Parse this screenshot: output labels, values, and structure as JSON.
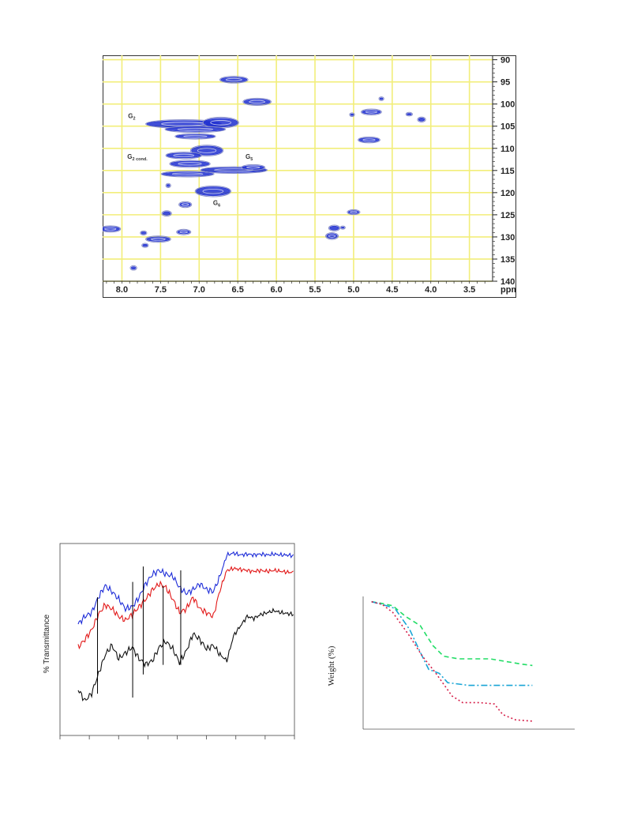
{
  "colors": {
    "grid": "#f2ee7a",
    "contour": "#1f2fd0",
    "contour_edge": "#8a90c8",
    "ftir_blue": "#1d2cd8",
    "ftir_red": "#e21818",
    "ftir_black": "#111111",
    "tga_green": "#22dd66",
    "tga_cyan": "#19a5d6",
    "tga_red": "#d6204a"
  },
  "chart_data": [
    {
      "type": "heatmap",
      "xlabel": "ppm",
      "x_ticks": [
        "8.0",
        "7.5",
        "7.0",
        "6.5",
        "6.0",
        "5.5",
        "5.0",
        "4.5",
        "4.0",
        "3.5"
      ],
      "y_ticks": [
        "90",
        "95",
        "100",
        "105",
        "110",
        "115",
        "120",
        "125",
        "130",
        "135",
        "140"
      ],
      "xlim": [
        8.25,
        3.2
      ],
      "ylim": [
        89,
        140
      ],
      "x_reversed": true,
      "y_axis_position": "right",
      "grid": true,
      "annotations": [
        {
          "label": "G",
          "sub": "2",
          "x": 7.92,
          "y": 103.2
        },
        {
          "label": "G",
          "sub": "2 cond.",
          "x": 7.93,
          "y": 112.4
        },
        {
          "label": "G",
          "sub": "5",
          "x": 6.4,
          "y": 112.4
        },
        {
          "label": "G",
          "sub": "6",
          "x": 6.82,
          "y": 122.8
        }
      ],
      "peaks": [
        {
          "x": 6.55,
          "y": 94.5,
          "rx": 0.17,
          "ry": 0.55
        },
        {
          "x": 6.25,
          "y": 99.5,
          "rx": 0.17,
          "ry": 0.6
        },
        {
          "x": 7.2,
          "y": 104.5,
          "rx": 0.48,
          "ry": 0.75
        },
        {
          "x": 6.72,
          "y": 104.2,
          "rx": 0.22,
          "ry": 1.0
        },
        {
          "x": 7.05,
          "y": 105.7,
          "rx": 0.38,
          "ry": 0.5
        },
        {
          "x": 7.05,
          "y": 107.3,
          "rx": 0.25,
          "ry": 0.4
        },
        {
          "x": 6.9,
          "y": 110.5,
          "rx": 0.2,
          "ry": 1.0
        },
        {
          "x": 7.2,
          "y": 111.6,
          "rx": 0.22,
          "ry": 0.55
        },
        {
          "x": 7.12,
          "y": 113.5,
          "rx": 0.25,
          "ry": 0.6
        },
        {
          "x": 6.55,
          "y": 114.9,
          "rx": 0.42,
          "ry": 0.55
        },
        {
          "x": 6.3,
          "y": 114.3,
          "rx": 0.14,
          "ry": 0.4
        },
        {
          "x": 7.15,
          "y": 115.8,
          "rx": 0.33,
          "ry": 0.45
        },
        {
          "x": 6.82,
          "y": 119.7,
          "rx": 0.22,
          "ry": 1.0
        },
        {
          "x": 7.18,
          "y": 122.7,
          "rx": 0.07,
          "ry": 0.45
        },
        {
          "x": 7.42,
          "y": 124.7,
          "rx": 0.05,
          "ry": 0.4
        },
        {
          "x": 8.15,
          "y": 128.2,
          "rx": 0.12,
          "ry": 0.5
        },
        {
          "x": 7.2,
          "y": 128.9,
          "rx": 0.08,
          "ry": 0.4
        },
        {
          "x": 7.53,
          "y": 130.5,
          "rx": 0.15,
          "ry": 0.5
        },
        {
          "x": 7.72,
          "y": 129.1,
          "rx": 0.03,
          "ry": 0.25
        },
        {
          "x": 7.7,
          "y": 131.9,
          "rx": 0.03,
          "ry": 0.25
        },
        {
          "x": 7.85,
          "y": 137.0,
          "rx": 0.03,
          "ry": 0.3
        },
        {
          "x": 7.4,
          "y": 118.4,
          "rx": 0.02,
          "ry": 0.25
        },
        {
          "x": 4.77,
          "y": 101.8,
          "rx": 0.12,
          "ry": 0.45
        },
        {
          "x": 4.8,
          "y": 108.1,
          "rx": 0.13,
          "ry": 0.45
        },
        {
          "x": 4.12,
          "y": 103.5,
          "rx": 0.04,
          "ry": 0.35
        },
        {
          "x": 4.28,
          "y": 102.3,
          "rx": 0.03,
          "ry": 0.2
        },
        {
          "x": 4.64,
          "y": 98.8,
          "rx": 0.02,
          "ry": 0.2
        },
        {
          "x": 5.02,
          "y": 102.4,
          "rx": 0.02,
          "ry": 0.2
        },
        {
          "x": 5.0,
          "y": 124.4,
          "rx": 0.07,
          "ry": 0.35
        },
        {
          "x": 5.25,
          "y": 128.0,
          "rx": 0.06,
          "ry": 0.45
        },
        {
          "x": 5.28,
          "y": 129.8,
          "rx": 0.07,
          "ry": 0.55
        },
        {
          "x": 5.14,
          "y": 127.9,
          "rx": 0.02,
          "ry": 0.15
        }
      ]
    },
    {
      "type": "line",
      "ylabel": "% Transmittance",
      "xlabel": "",
      "x_tick_count": 9,
      "markers_x": [
        0.16,
        0.31,
        0.355,
        0.44,
        0.515
      ],
      "series": [
        {
          "color_key": "ftir_blue",
          "values": [
            0.58,
            0.62,
            0.64,
            0.72,
            0.78,
            0.75,
            0.71,
            0.66,
            0.67,
            0.72,
            0.79,
            0.84,
            0.86,
            0.84,
            0.83,
            0.77,
            0.74,
            0.76,
            0.79,
            0.76,
            0.75,
            0.83,
            0.94,
            0.95,
            0.94,
            0.945,
            0.94,
            0.945,
            0.94,
            0.945,
            0.94,
            0.94,
            0.935
          ]
        },
        {
          "color_key": "ftir_red",
          "values": [
            0.46,
            0.5,
            0.55,
            0.63,
            0.68,
            0.66,
            0.62,
            0.6,
            0.63,
            0.67,
            0.71,
            0.76,
            0.79,
            0.77,
            0.71,
            0.64,
            0.66,
            0.72,
            0.66,
            0.64,
            0.62,
            0.76,
            0.86,
            0.87,
            0.865,
            0.86,
            0.855,
            0.86,
            0.855,
            0.86,
            0.855,
            0.85,
            0.85
          ]
        },
        {
          "color_key": "ftir_black",
          "values": [
            0.24,
            0.18,
            0.22,
            0.32,
            0.42,
            0.47,
            0.4,
            0.43,
            0.46,
            0.4,
            0.37,
            0.39,
            0.46,
            0.49,
            0.45,
            0.38,
            0.44,
            0.53,
            0.5,
            0.45,
            0.47,
            0.42,
            0.39,
            0.52,
            0.57,
            0.62,
            0.61,
            0.63,
            0.64,
            0.65,
            0.64,
            0.635,
            0.63
          ]
        }
      ]
    },
    {
      "type": "line",
      "ylabel": "Weight (%)",
      "xlabel": "",
      "series": [
        {
          "color_key": "tga_green",
          "dash": "6,4",
          "points": [
            [
              0.04,
              0.96
            ],
            [
              0.08,
              0.95
            ],
            [
              0.14,
              0.93
            ],
            [
              0.2,
              0.85
            ],
            [
              0.27,
              0.78
            ],
            [
              0.33,
              0.63
            ],
            [
              0.38,
              0.55
            ],
            [
              0.45,
              0.53
            ],
            [
              0.6,
              0.53
            ],
            [
              0.75,
              0.49
            ],
            [
              0.8,
              0.48
            ]
          ]
        },
        {
          "color_key": "tga_cyan",
          "dash": "8,3,2,3",
          "points": [
            [
              0.04,
              0.96
            ],
            [
              0.09,
              0.94
            ],
            [
              0.15,
              0.91
            ],
            [
              0.22,
              0.75
            ],
            [
              0.27,
              0.58
            ],
            [
              0.31,
              0.45
            ],
            [
              0.36,
              0.42
            ],
            [
              0.4,
              0.35
            ],
            [
              0.5,
              0.33
            ],
            [
              0.7,
              0.33
            ],
            [
              0.8,
              0.33
            ]
          ]
        },
        {
          "color_key": "tga_red",
          "dash": "2,3",
          "points": [
            [
              0.04,
              0.96
            ],
            [
              0.09,
              0.94
            ],
            [
              0.14,
              0.88
            ],
            [
              0.22,
              0.7
            ],
            [
              0.28,
              0.55
            ],
            [
              0.34,
              0.43
            ],
            [
              0.42,
              0.25
            ],
            [
              0.47,
              0.2
            ],
            [
              0.55,
              0.2
            ],
            [
              0.62,
              0.19
            ],
            [
              0.66,
              0.11
            ],
            [
              0.72,
              0.07
            ],
            [
              0.8,
              0.06
            ]
          ]
        }
      ]
    }
  ]
}
